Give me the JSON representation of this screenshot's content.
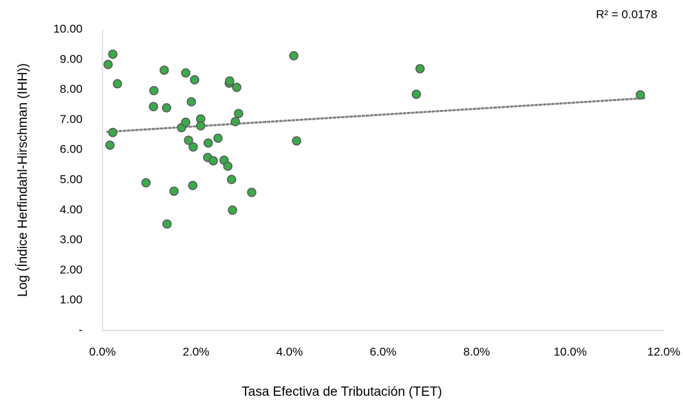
{
  "chart_data": {
    "type": "scatter",
    "annotation": "R² = 0.0178",
    "x_label": "Tasa Efectiva de Tributación (TET)",
    "y_label": "Log (Índice Herfindahl-Hirschman (IHH))",
    "xlim": [
      0,
      12
    ],
    "ylim": [
      0,
      10
    ],
    "xticks": [
      {
        "value": 0,
        "label": "0.0%"
      },
      {
        "value": 2,
        "label": "2.0%"
      },
      {
        "value": 4,
        "label": "4.0%"
      },
      {
        "value": 6,
        "label": "6.0%"
      },
      {
        "value": 8,
        "label": "8.0%"
      },
      {
        "value": 10,
        "label": "10.0%"
      },
      {
        "value": 12,
        "label": "12.0%"
      }
    ],
    "yticks": [
      {
        "value": 0,
        "label": "-"
      },
      {
        "value": 1,
        "label": "1.00"
      },
      {
        "value": 2,
        "label": "2.00"
      },
      {
        "value": 3,
        "label": "3.00"
      },
      {
        "value": 4,
        "label": "4.00"
      },
      {
        "value": 5,
        "label": "5.00"
      },
      {
        "value": 6,
        "label": "6.00"
      },
      {
        "value": 7,
        "label": "7.00"
      },
      {
        "value": 8,
        "label": "8.00"
      },
      {
        "value": 9,
        "label": "9.00"
      },
      {
        "value": 10,
        "label": "10.00"
      }
    ],
    "grid": false,
    "series": [
      {
        "color": "#3bab4a",
        "edge_color": "#595959",
        "x": [
          0.12,
          0.22,
          0.32,
          0.22,
          0.16,
          0.93,
          1.1,
          1.09,
          1.32,
          1.37,
          1.38,
          1.53,
          1.69,
          1.78,
          1.78,
          1.84,
          1.9,
          1.94,
          1.97,
          1.93,
          2.1,
          2.1,
          2.25,
          2.26,
          2.37,
          2.47,
          2.6,
          2.68,
          2.71,
          2.72,
          2.76,
          2.78,
          2.84,
          2.87,
          2.91,
          3.19,
          4.09,
          4.15,
          6.71,
          6.79,
          11.5
        ],
        "values": [
          8.84,
          9.18,
          8.2,
          6.58,
          6.16,
          4.91,
          7.97,
          7.44,
          8.65,
          7.4,
          3.54,
          4.63,
          6.74,
          8.56,
          6.92,
          6.32,
          7.6,
          6.1,
          8.33,
          4.82,
          7.03,
          6.8,
          5.75,
          6.23,
          5.64,
          6.39,
          5.66,
          5.46,
          8.22,
          8.29,
          5.02,
          4.0,
          6.94,
          8.08,
          7.21,
          4.59,
          9.13,
          6.3,
          7.85,
          8.7,
          7.83
        ]
      }
    ],
    "trendline": {
      "color": "#7f7f7f",
      "x": [
        0.1,
        11.6
      ],
      "values": [
        6.6,
        7.72
      ]
    }
  }
}
